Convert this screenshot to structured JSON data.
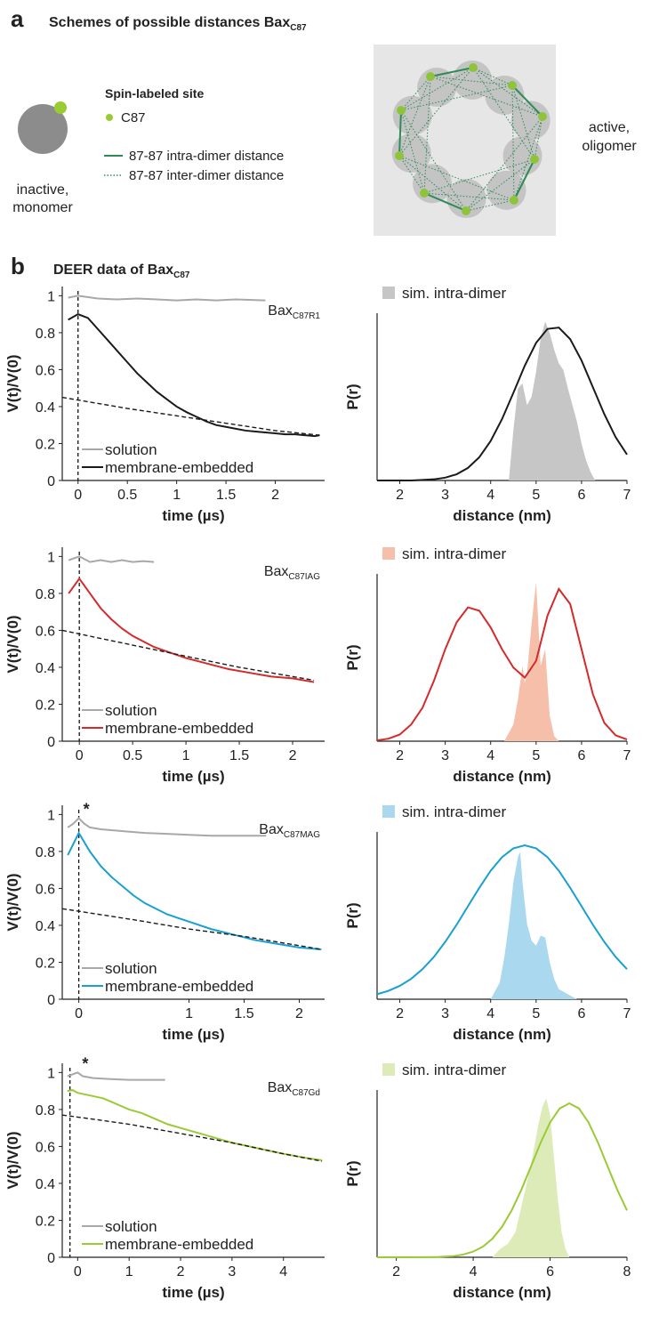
{
  "panel_a": {
    "label": "a",
    "title": "Schemes of possible distances Bax",
    "title_sub": "C87",
    "monomer_label": [
      "inactive,",
      "monomer"
    ],
    "legend_title": "Spin-labeled site",
    "site": "C87",
    "intra": "87-87 intra-dimer distance",
    "inter": "87-87 inter-dimer distance",
    "oligomer_label": [
      "active,",
      "oligomer"
    ]
  },
  "panel_b": {
    "label": "b",
    "title": "DEER data of Bax",
    "title_sub": "C87"
  },
  "chart_data": [
    {
      "type": "line",
      "xlabel": "time (µs)",
      "ylabel": "V(t)/V(0)",
      "xlim": [
        -0.16,
        2.5
      ],
      "ylim": [
        0,
        1.05
      ],
      "xticks": [
        0,
        0.5,
        1,
        1.5,
        2
      ],
      "yticks": [
        0,
        0.2,
        0.4,
        0.6,
        0.8,
        1
      ],
      "vline": 0,
      "legend": "lower left",
      "annotation": {
        "text": "Bax",
        "sub": "C87R1"
      },
      "series": [
        {
          "name": "solution",
          "color": "#a8a8a8",
          "x": [
            -0.1,
            0,
            0.2,
            0.4,
            0.6,
            0.8,
            1.0,
            1.2,
            1.4,
            1.6,
            1.9
          ],
          "values": [
            0.99,
            1.0,
            0.985,
            0.98,
            0.985,
            0.98,
            0.975,
            0.98,
            0.975,
            0.98,
            0.975
          ]
        },
        {
          "name": "membrane-embedded",
          "color": "#1a1a1a",
          "x": [
            -0.1,
            0,
            0.1,
            0.2,
            0.3,
            0.4,
            0.5,
            0.6,
            0.7,
            0.8,
            0.9,
            1.0,
            1.1,
            1.2,
            1.3,
            1.4,
            1.5,
            1.6,
            1.7,
            1.8,
            1.9,
            2.0,
            2.1,
            2.2,
            2.3,
            2.4,
            2.45
          ],
          "values": [
            0.87,
            0.9,
            0.88,
            0.82,
            0.76,
            0.7,
            0.64,
            0.58,
            0.53,
            0.48,
            0.44,
            0.4,
            0.37,
            0.345,
            0.32,
            0.3,
            0.29,
            0.28,
            0.27,
            0.265,
            0.26,
            0.255,
            0.25,
            0.25,
            0.245,
            0.24,
            0.245
          ]
        },
        {
          "color": "#1a1a1a",
          "dash": true,
          "x": [
            -0.16,
            0.5,
            1.0,
            1.5,
            2.0,
            2.45
          ],
          "values": [
            0.45,
            0.39,
            0.35,
            0.31,
            0.27,
            0.245
          ]
        }
      ]
    },
    {
      "type": "distribution",
      "xlabel": "distance (nm)",
      "ylabel": "P(r)",
      "xlim": [
        1.5,
        7
      ],
      "ylim": [
        0,
        1
      ],
      "xticks": [
        2,
        3,
        4,
        5,
        6,
        7
      ],
      "legend": "upper left",
      "series": [
        {
          "name": "sim. intra-dimer",
          "color": "#c6c6c6",
          "fill": true,
          "x": [
            4.4,
            4.5,
            4.6,
            4.7,
            4.8,
            4.9,
            5.0,
            5.1,
            5.2,
            5.3,
            5.4,
            5.5,
            5.6,
            5.7,
            5.8,
            5.9,
            6.0,
            6.1,
            6.2,
            6.3
          ],
          "values": [
            0,
            0.3,
            0.55,
            0.58,
            0.45,
            0.5,
            0.65,
            0.85,
            0.95,
            0.88,
            0.78,
            0.7,
            0.66,
            0.55,
            0.45,
            0.35,
            0.22,
            0.12,
            0.05,
            0
          ]
        },
        {
          "color": "#1a1a1a",
          "x": [
            1.5,
            1.75,
            2,
            2.25,
            2.5,
            2.75,
            3,
            3.25,
            3.5,
            3.75,
            4,
            4.25,
            4.5,
            4.75,
            5,
            5.25,
            5.5,
            5.75,
            6,
            6.25,
            6.5,
            6.75,
            7
          ],
          "values": [
            0,
            0,
            0,
            0,
            0.003,
            0.007,
            0.017,
            0.037,
            0.075,
            0.139,
            0.236,
            0.367,
            0.524,
            0.686,
            0.823,
            0.906,
            0.914,
            0.845,
            0.717,
            0.557,
            0.397,
            0.259,
            0.155
          ]
        }
      ]
    },
    {
      "type": "line",
      "xlabel": "time (µs)",
      "ylabel": "V(t)/V(0)",
      "xlim": [
        -0.16,
        2.3
      ],
      "ylim": [
        0,
        1.05
      ],
      "xticks": [
        0,
        0.5,
        1,
        1.5,
        2
      ],
      "yticks": [
        0,
        0.2,
        0.4,
        0.6,
        0.8,
        1
      ],
      "vline": 0,
      "legend": "lower left",
      "annotation": {
        "text": "Bax",
        "sub": "C87IAG"
      },
      "series": [
        {
          "name": "solution",
          "color": "#a8a8a8",
          "x": [
            -0.1,
            0,
            0.1,
            0.2,
            0.3,
            0.4,
            0.5,
            0.6,
            0.7
          ],
          "values": [
            0.98,
            1.0,
            0.97,
            0.98,
            0.97,
            0.98,
            0.97,
            0.975,
            0.97
          ]
        },
        {
          "name": "membrane-embedded",
          "color": "#d42a2a",
          "x": [
            -0.1,
            0,
            0.1,
            0.2,
            0.3,
            0.4,
            0.5,
            0.6,
            0.7,
            0.8,
            0.9,
            1.0,
            1.2,
            1.4,
            1.6,
            1.8,
            2.0,
            2.2
          ],
          "values": [
            0.8,
            0.88,
            0.8,
            0.72,
            0.66,
            0.61,
            0.57,
            0.54,
            0.51,
            0.49,
            0.47,
            0.45,
            0.42,
            0.39,
            0.37,
            0.35,
            0.34,
            0.32
          ]
        },
        {
          "color": "#1a1a1a",
          "dash": true,
          "x": [
            -0.16,
            0.5,
            1.0,
            1.5,
            2.2
          ],
          "values": [
            0.6,
            0.52,
            0.46,
            0.4,
            0.33
          ]
        }
      ]
    },
    {
      "type": "distribution",
      "xlabel": "distance (nm)",
      "ylabel": "P(r)",
      "xlim": [
        1.5,
        7
      ],
      "ylim": [
        0,
        1
      ],
      "xticks": [
        2,
        3,
        4,
        5,
        6,
        7
      ],
      "legend": "upper left",
      "series": [
        {
          "name": "sim. intra-dimer",
          "color": "#f6bfaa",
          "fill": true,
          "x": [
            4.3,
            4.5,
            4.6,
            4.7,
            4.75,
            4.8,
            4.9,
            5.0,
            5.05,
            5.1,
            5.2,
            5.25,
            5.3,
            5.4,
            5.5
          ],
          "values": [
            0,
            0.1,
            0.25,
            0.45,
            0.35,
            0.4,
            0.7,
            0.95,
            0.7,
            0.45,
            0.55,
            0.35,
            0.15,
            0.03,
            0
          ]
        },
        {
          "color": "#d42a2a",
          "x": [
            1.5,
            1.75,
            2,
            2.25,
            2.5,
            2.75,
            3,
            3.25,
            3.5,
            3.75,
            4,
            4.25,
            4.5,
            4.75,
            5,
            5.25,
            5.5,
            5.75,
            6,
            6.25,
            6.5,
            6.75,
            7
          ],
          "values": [
            0.005,
            0.015,
            0.04,
            0.1,
            0.2,
            0.36,
            0.55,
            0.71,
            0.8,
            0.78,
            0.68,
            0.55,
            0.44,
            0.38,
            0.48,
            0.75,
            0.91,
            0.82,
            0.55,
            0.28,
            0.11,
            0.035,
            0.01
          ]
        }
      ]
    },
    {
      "type": "line",
      "xlabel": "time (µs)",
      "ylabel": "V(t)/V(0)",
      "xlim": [
        -0.15,
        2.23
      ],
      "ylim": [
        0,
        1.05
      ],
      "xticks": [
        0,
        1,
        1.5,
        2
      ],
      "yticks": [
        0,
        0.2,
        0.4,
        0.6,
        0.8,
        1
      ],
      "vline": 0,
      "legend": "lower left",
      "annotation": {
        "text": "Bax",
        "sub": "C87MAG"
      },
      "peak_label": "*",
      "series": [
        {
          "name": "solution",
          "color": "#a8a8a8",
          "x": [
            -0.1,
            -0.05,
            0,
            0.05,
            0.1,
            0.2,
            0.4,
            0.6,
            0.8,
            1.0,
            1.2,
            1.4,
            1.7
          ],
          "values": [
            0.93,
            0.95,
            0.98,
            0.95,
            0.93,
            0.92,
            0.91,
            0.9,
            0.895,
            0.89,
            0.885,
            0.885,
            0.885
          ]
        },
        {
          "name": "membrane-embedded",
          "color": "#1aa0d0",
          "x": [
            -0.1,
            0,
            0.1,
            0.2,
            0.3,
            0.4,
            0.5,
            0.6,
            0.7,
            0.8,
            0.9,
            1.0,
            1.2,
            1.4,
            1.6,
            1.8,
            2.0,
            2.2
          ],
          "values": [
            0.78,
            0.9,
            0.8,
            0.72,
            0.66,
            0.61,
            0.56,
            0.52,
            0.49,
            0.46,
            0.44,
            0.42,
            0.38,
            0.35,
            0.32,
            0.3,
            0.28,
            0.27
          ]
        },
        {
          "color": "#1a1a1a",
          "dash": true,
          "x": [
            -0.15,
            0.5,
            1.0,
            1.5,
            2.2
          ],
          "values": [
            0.49,
            0.43,
            0.38,
            0.34,
            0.27
          ]
        }
      ]
    },
    {
      "type": "distribution",
      "xlabel": "distance (nm)",
      "ylabel": "P(r)",
      "xlim": [
        1.5,
        7
      ],
      "ylim": [
        0,
        1
      ],
      "xticks": [
        2,
        3,
        4,
        5,
        6,
        7
      ],
      "legend": "upper left",
      "series": [
        {
          "name": "sim. intra-dimer",
          "color": "#aad8ef",
          "fill": true,
          "x": [
            4.0,
            4.2,
            4.3,
            4.4,
            4.5,
            4.6,
            4.65,
            4.7,
            4.8,
            4.9,
            5.0,
            5.1,
            5.2,
            5.3,
            5.4,
            5.5,
            5.7,
            5.9
          ],
          "values": [
            0,
            0.1,
            0.25,
            0.45,
            0.7,
            0.85,
            0.88,
            0.7,
            0.45,
            0.35,
            0.32,
            0.38,
            0.37,
            0.22,
            0.12,
            0.06,
            0.03,
            0
          ]
        },
        {
          "color": "#1aa0d0",
          "x": [
            1.5,
            1.75,
            2,
            2.25,
            2.5,
            2.75,
            3,
            3.25,
            3.5,
            3.75,
            4,
            4.25,
            4.5,
            4.75,
            5,
            5.25,
            5.5,
            5.75,
            6,
            6.25,
            6.5,
            6.75,
            7
          ],
          "values": [
            0.03,
            0.05,
            0.08,
            0.122,
            0.18,
            0.253,
            0.343,
            0.445,
            0.556,
            0.666,
            0.768,
            0.849,
            0.902,
            0.92,
            0.902,
            0.849,
            0.768,
            0.666,
            0.556,
            0.445,
            0.343,
            0.253,
            0.18
          ]
        }
      ]
    },
    {
      "type": "line",
      "xlabel": "time (µs)",
      "ylabel": "V(t)/V(0)",
      "xlim": [
        -0.3,
        4.8
      ],
      "ylim": [
        0,
        1.05
      ],
      "xticks": [
        0,
        1,
        2,
        3,
        4
      ],
      "yticks": [
        0,
        0.2,
        0.4,
        0.6,
        0.8,
        1
      ],
      "vline": -0.15,
      "legend": "lower left",
      "annotation": {
        "text": "Bax",
        "sub": "C87Gd"
      },
      "peak_label": "*",
      "series": [
        {
          "name": "solution",
          "color": "#a8a8a8",
          "x": [
            -0.2,
            -0.1,
            0,
            0.1,
            0.3,
            0.6,
            1.0,
            1.4,
            1.7
          ],
          "values": [
            0.98,
            0.99,
            1.0,
            0.98,
            0.97,
            0.965,
            0.96,
            0.96,
            0.96
          ]
        },
        {
          "name": "membrane-embedded",
          "color": "#9acb34",
          "x": [
            -0.2,
            -0.1,
            0,
            0.25,
            0.5,
            0.75,
            1,
            1.25,
            1.5,
            1.75,
            2,
            2.5,
            3,
            3.5,
            4,
            4.5,
            4.75
          ],
          "values": [
            0.9,
            0.905,
            0.89,
            0.875,
            0.86,
            0.83,
            0.8,
            0.78,
            0.75,
            0.72,
            0.7,
            0.66,
            0.62,
            0.59,
            0.56,
            0.535,
            0.525
          ]
        },
        {
          "color": "#1a1a1a",
          "dash": true,
          "x": [
            -0.3,
            0.5,
            1,
            2,
            3,
            4,
            4.75
          ],
          "values": [
            0.77,
            0.74,
            0.72,
            0.67,
            0.62,
            0.56,
            0.52
          ]
        }
      ]
    },
    {
      "type": "distribution",
      "xlabel": "distance (nm)",
      "ylabel": "P(r)",
      "xlim": [
        1.5,
        8
      ],
      "ylim": [
        0,
        1
      ],
      "xticks": [
        2,
        4,
        6,
        8
      ],
      "legend": "upper left",
      "series": [
        {
          "name": "sim. intra-dimer",
          "color": "#dcebb7",
          "fill": true,
          "x": [
            4.5,
            4.7,
            4.9,
            5.1,
            5.3,
            5.5,
            5.7,
            5.8,
            5.9,
            6.0,
            6.1,
            6.2,
            6.3,
            6.4,
            6.5
          ],
          "values": [
            0,
            0.05,
            0.08,
            0.15,
            0.35,
            0.55,
            0.8,
            0.9,
            0.95,
            0.85,
            0.6,
            0.35,
            0.15,
            0.05,
            0
          ]
        },
        {
          "color": "#9acb34",
          "x": [
            1.5,
            2,
            2.5,
            3,
            3.5,
            3.75,
            4,
            4.25,
            4.5,
            4.75,
            5,
            5.25,
            5.5,
            5.75,
            6,
            6.25,
            6.5,
            6.75,
            7,
            7.25,
            7.5,
            7.75,
            8
          ],
          "values": [
            0,
            0,
            0,
            0.001,
            0.007,
            0.017,
            0.034,
            0.063,
            0.111,
            0.182,
            0.28,
            0.402,
            0.541,
            0.683,
            0.806,
            0.89,
            0.92,
            0.89,
            0.806,
            0.683,
            0.541,
            0.402,
            0.28
          ]
        }
      ]
    }
  ]
}
